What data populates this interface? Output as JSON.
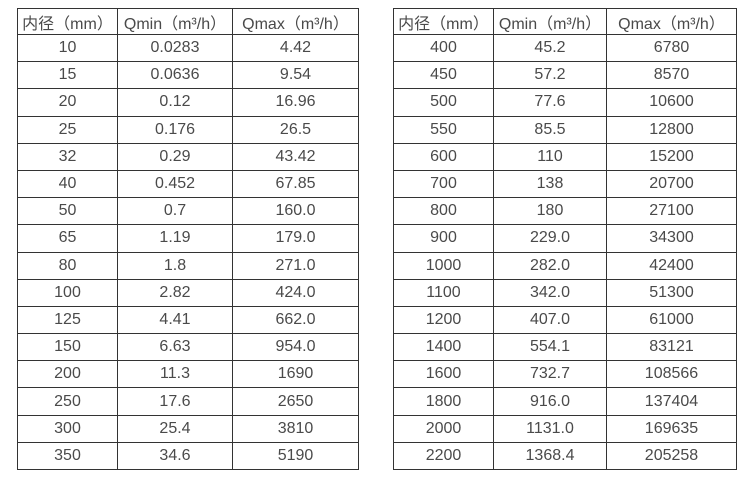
{
  "page": {
    "background_color": "#ffffff",
    "border_color": "#333333",
    "text_color": "#4a4a4a"
  },
  "tables": [
    {
      "name": "flow-range-table-small-diameters",
      "headers": [
        "内径（mm）",
        "Qmin（m³/h）",
        "Qmax（m³/h）"
      ],
      "rows": [
        [
          "10",
          "0.0283",
          "4.42"
        ],
        [
          "15",
          "0.0636",
          "9.54"
        ],
        [
          "20",
          "0.12",
          "16.96"
        ],
        [
          "25",
          "0.176",
          "26.5"
        ],
        [
          "32",
          "0.29",
          "43.42"
        ],
        [
          "40",
          "0.452",
          "67.85"
        ],
        [
          "50",
          "0.7",
          "160.0"
        ],
        [
          "65",
          "1.19",
          "179.0"
        ],
        [
          "80",
          "1.8",
          "271.0"
        ],
        [
          "100",
          "2.82",
          "424.0"
        ],
        [
          "125",
          "4.41",
          "662.0"
        ],
        [
          "150",
          "6.63",
          "954.0"
        ],
        [
          "200",
          "11.3",
          "1690"
        ],
        [
          "250",
          "17.6",
          "2650"
        ],
        [
          "300",
          "25.4",
          "3810"
        ],
        [
          "350",
          "34.6",
          "5190"
        ]
      ]
    },
    {
      "name": "flow-range-table-large-diameters",
      "headers": [
        "内径（mm）",
        "Qmin（m³/h）",
        "Qmax（m³/h）"
      ],
      "rows": [
        [
          "400",
          "45.2",
          "6780"
        ],
        [
          "450",
          "57.2",
          "8570"
        ],
        [
          "500",
          "77.6",
          "10600"
        ],
        [
          "550",
          "85.5",
          "12800"
        ],
        [
          "600",
          "110",
          "15200"
        ],
        [
          "700",
          "138",
          "20700"
        ],
        [
          "800",
          "180",
          "27100"
        ],
        [
          "900",
          "229.0",
          "34300"
        ],
        [
          "1000",
          "282.0",
          "42400"
        ],
        [
          "1100",
          "342.0",
          "51300"
        ],
        [
          "1200",
          "407.0",
          "61000"
        ],
        [
          "1400",
          "554.1",
          "83121"
        ],
        [
          "1600",
          "732.7",
          "108566"
        ],
        [
          "1800",
          "916.0",
          "137404"
        ],
        [
          "2000",
          "1131.0",
          "169635"
        ],
        [
          "2200",
          "1368.4",
          "205258"
        ]
      ]
    }
  ],
  "chart_data": [
    {
      "type": "table",
      "title": "",
      "columns": [
        "内径（mm）",
        "Qmin（m³/h）",
        "Qmax（m³/h）"
      ],
      "rows": [
        [
          10,
          0.0283,
          4.42
        ],
        [
          15,
          0.0636,
          9.54
        ],
        [
          20,
          0.12,
          16.96
        ],
        [
          25,
          0.176,
          26.5
        ],
        [
          32,
          0.29,
          43.42
        ],
        [
          40,
          0.452,
          67.85
        ],
        [
          50,
          0.7,
          160.0
        ],
        [
          65,
          1.19,
          179.0
        ],
        [
          80,
          1.8,
          271.0
        ],
        [
          100,
          2.82,
          424.0
        ],
        [
          125,
          4.41,
          662.0
        ],
        [
          150,
          6.63,
          954.0
        ],
        [
          200,
          11.3,
          1690
        ],
        [
          250,
          17.6,
          2650
        ],
        [
          300,
          25.4,
          3810
        ],
        [
          350,
          34.6,
          5190
        ]
      ]
    },
    {
      "type": "table",
      "title": "",
      "columns": [
        "内径（mm）",
        "Qmin（m³/h）",
        "Qmax（m³/h）"
      ],
      "rows": [
        [
          400,
          45.2,
          6780
        ],
        [
          450,
          57.2,
          8570
        ],
        [
          500,
          77.6,
          10600
        ],
        [
          550,
          85.5,
          12800
        ],
        [
          600,
          110,
          15200
        ],
        [
          700,
          138,
          20700
        ],
        [
          800,
          180,
          27100
        ],
        [
          900,
          229.0,
          34300
        ],
        [
          1000,
          282.0,
          42400
        ],
        [
          1100,
          342.0,
          51300
        ],
        [
          1200,
          407.0,
          61000
        ],
        [
          1400,
          554.1,
          83121
        ],
        [
          1600,
          732.7,
          108566
        ],
        [
          1800,
          916.0,
          137404
        ],
        [
          2000,
          1131.0,
          169635
        ],
        [
          2200,
          1368.4,
          205258
        ]
      ]
    }
  ]
}
